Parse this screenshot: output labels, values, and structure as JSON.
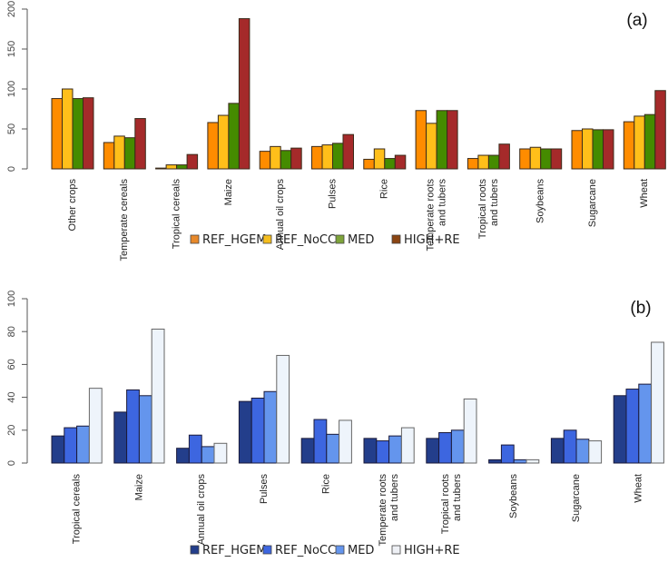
{
  "chart_data": [
    {
      "type": "bar",
      "panel_label": "(a)",
      "title": "",
      "xlabel": "",
      "ylabel": "",
      "ylim": [
        0,
        200
      ],
      "yticks": [
        "0",
        "50",
        "100",
        "150",
        "200"
      ],
      "ytick_values": [
        0,
        50,
        100,
        150,
        200
      ],
      "grid": false,
      "legend_position": "bottom",
      "categories": [
        [
          "Other crops"
        ],
        [
          "Temperate cereals"
        ],
        [
          "Tropical cereals"
        ],
        [
          "Maize"
        ],
        [
          "Annual oil crops"
        ],
        [
          "Pulses"
        ],
        [
          "Rice"
        ],
        [
          "Temperate roots",
          "and tubers"
        ],
        [
          "Tropical roots",
          "and tubers"
        ],
        [
          "Soybeans"
        ],
        [
          "Sugarcane"
        ],
        [
          "Wheat"
        ]
      ],
      "series": [
        {
          "name": "REF_HGEM",
          "color": "#ff8c00",
          "values": [
            88,
            33,
            1,
            58,
            22,
            28,
            12,
            73,
            13,
            25,
            48,
            59
          ]
        },
        {
          "name": "REF_NoCC",
          "color": "#ffbf1a",
          "values": [
            100,
            41,
            5,
            67,
            28,
            30,
            25,
            57,
            17,
            27,
            50,
            66
          ]
        },
        {
          "name": "MED",
          "color": "#458b00",
          "values": [
            88,
            39,
            5,
            82,
            23,
            32,
            13,
            73,
            17,
            25,
            49,
            68
          ]
        },
        {
          "name": "HIGH+RE",
          "color": "#a52a2a",
          "values": [
            89,
            63,
            18,
            188,
            26,
            43,
            17,
            73,
            31,
            25,
            49,
            98
          ]
        }
      ]
    },
    {
      "type": "bar",
      "panel_label": "(b)",
      "title": "",
      "xlabel": "",
      "ylabel": "",
      "ylim": [
        0,
        100
      ],
      "yticks": [
        "0",
        "20",
        "40",
        "60",
        "80",
        "100"
      ],
      "ytick_values": [
        0,
        20,
        40,
        60,
        80,
        100
      ],
      "grid": false,
      "legend_position": "bottom",
      "categories": [
        [
          "Tropical cereals"
        ],
        [
          "Maize"
        ],
        [
          "Annual oil crops"
        ],
        [
          "Pulses"
        ],
        [
          "Rice"
        ],
        [
          "Temperate roots",
          "and tubers"
        ],
        [
          "Tropical roots",
          "and tubers"
        ],
        [
          "Soybeans"
        ],
        [
          "Sugarcane"
        ],
        [
          "Wheat"
        ]
      ],
      "series": [
        {
          "name": "REF_HGEM",
          "color": "#233e8b",
          "values": [
            16.5,
            31,
            9,
            37.5,
            15,
            15,
            15,
            2,
            15,
            41
          ]
        },
        {
          "name": "REF_NoCC",
          "color": "#3d66e0",
          "values": [
            21.5,
            44.5,
            17,
            39.5,
            26.5,
            13.5,
            18.5,
            11,
            20,
            45
          ]
        },
        {
          "name": "MED",
          "color": "#6495ed",
          "values": [
            22.5,
            41,
            10,
            43.5,
            17.5,
            16.5,
            20,
            2,
            14.5,
            48
          ]
        },
        {
          "name": "HIGH+RE",
          "color": "#eef4fb",
          "values": [
            45.5,
            81.5,
            12,
            65.5,
            26,
            21.5,
            39,
            2,
            13.5,
            73.5
          ]
        }
      ]
    }
  ],
  "legend_colors": {
    "a": [
      "#e8892a",
      "#f5be1e",
      "#7ea43a",
      "#8b4513"
    ],
    "b": [
      "#233e8b",
      "#3d66e0",
      "#6495ed",
      "#eef0f5"
    ]
  }
}
